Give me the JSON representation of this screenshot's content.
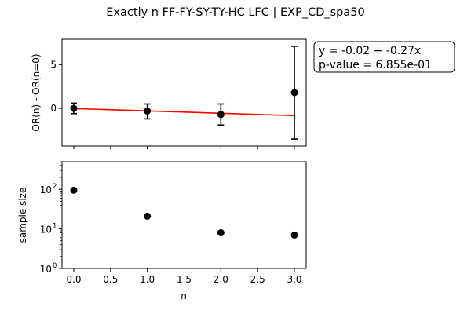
{
  "figure_title": "Exactly n FF-FY-SY-TY-HC LFC | EXP_CD_spa50",
  "annotation": {
    "line1": "y = -0.02 + -0.27x",
    "line2": "p-value = 6.855e-01"
  },
  "colors": {
    "points": "#000000",
    "fit_line": "#ff0000",
    "axes": "#000000",
    "background": "#ffffff"
  },
  "chart_data": [
    {
      "type": "scatter",
      "panel": "top",
      "ylabel": "OR(n) - OR(n=0)",
      "xlim": [
        -0.16,
        3.16
      ],
      "ylim": [
        -4.3,
        7.9
      ],
      "yticks": [
        0,
        5
      ],
      "ytick_labels": [
        "0",
        "5"
      ],
      "x_tick_labels_visible": false,
      "grid": false,
      "points": [
        {
          "x": 0,
          "y": 0.0,
          "err_low": -0.6,
          "err_high": 0.6
        },
        {
          "x": 1,
          "y": -0.3,
          "err_low": -1.2,
          "err_high": 0.5
        },
        {
          "x": 2,
          "y": -0.7,
          "err_low": -1.9,
          "err_high": 0.5
        },
        {
          "x": 3,
          "y": 1.8,
          "err_low": -3.5,
          "err_high": 7.1
        }
      ],
      "fit": {
        "intercept": -0.02,
        "slope": -0.27,
        "x_range": [
          0,
          3
        ]
      }
    },
    {
      "type": "scatter",
      "panel": "bottom",
      "xlabel": "n",
      "ylabel": "sample size",
      "yscale": "log",
      "xlim": [
        -0.16,
        3.16
      ],
      "ylim": [
        1,
        500
      ],
      "xticks": [
        0,
        0.5,
        1,
        1.5,
        2,
        2.5,
        3
      ],
      "xtick_labels": [
        "0.0",
        "0.5",
        "1.0",
        "1.5",
        "2.0",
        "2.5",
        "3.0"
      ],
      "yticks": [
        1,
        10,
        100
      ],
      "ytick_labels": [
        "10",
        "10",
        "10"
      ],
      "ytick_exponents": [
        "0",
        "1",
        "2"
      ],
      "grid": false,
      "points": [
        {
          "x": 0,
          "y": 95
        },
        {
          "x": 1,
          "y": 21
        },
        {
          "x": 2,
          "y": 8
        },
        {
          "x": 3,
          "y": 7
        }
      ]
    }
  ]
}
